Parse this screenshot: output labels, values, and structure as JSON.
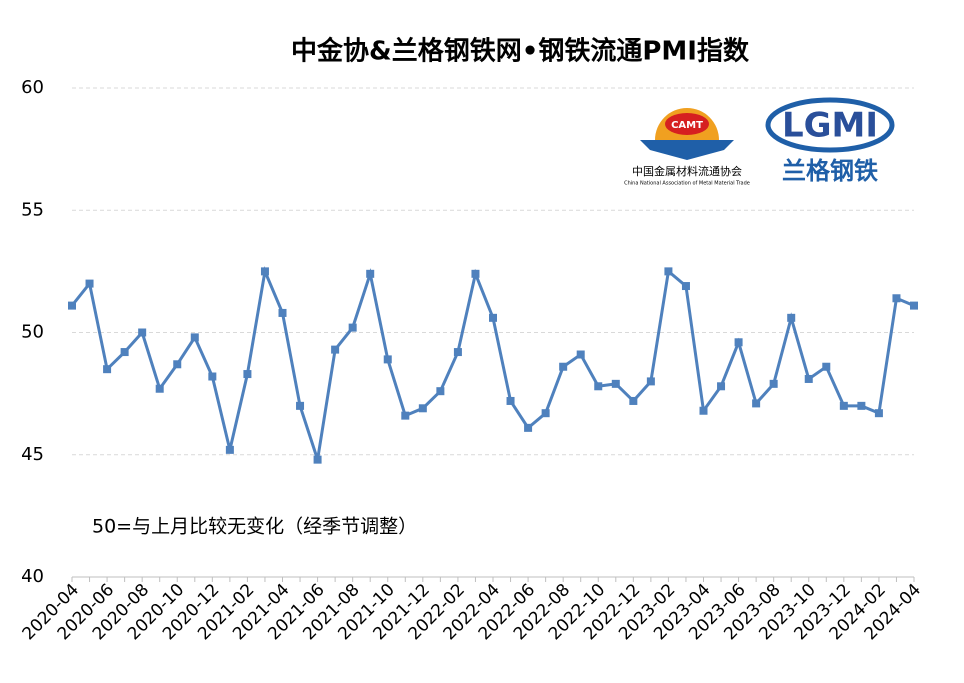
{
  "chart_data": {
    "type": "line",
    "title": "中金协&兰格钢铁网•钢铁流通PMI指数",
    "annotation": "50=与上月比较无变化（经季节调整）",
    "categories": [
      "2020-04",
      null,
      "2020-06",
      null,
      "2020-08",
      null,
      "2020-10",
      null,
      "2020-12",
      null,
      "2021-02",
      null,
      "2021-04",
      null,
      "2021-06",
      null,
      "2021-08",
      null,
      "2021-10",
      null,
      "2021-12",
      null,
      "2022-02",
      null,
      "2022-04",
      null,
      "2022-06",
      null,
      "2022-08",
      null,
      "2022-10",
      null,
      "2022-12",
      null,
      "2023-02",
      null,
      "2023-04",
      null,
      "2023-06",
      null,
      "2023-08",
      null,
      "2023-10",
      null,
      "2023-12",
      null,
      "2024-02",
      null,
      "2024-04"
    ],
    "values": [
      51.1,
      52.0,
      48.5,
      49.2,
      50.0,
      47.7,
      48.7,
      49.8,
      48.2,
      45.2,
      48.3,
      52.5,
      50.8,
      47.0,
      44.8,
      49.3,
      50.2,
      52.4,
      48.9,
      46.6,
      46.9,
      47.6,
      49.2,
      52.4,
      50.6,
      47.2,
      46.1,
      46.7,
      48.6,
      49.1,
      47.8,
      47.9,
      47.2,
      48.0,
      52.5,
      51.9,
      46.8,
      47.8,
      49.6,
      47.1,
      47.9,
      50.6,
      48.1,
      48.6,
      47.0,
      47.0,
      46.7,
      51.4,
      51.1
    ],
    "color": "#4f81bd",
    "ylim": [
      40,
      60
    ],
    "yticks": [
      40,
      45,
      50,
      55,
      60
    ],
    "grid": true
  },
  "logos": {
    "camt": "CAMT",
    "camt_name": "中国金属材料流通协会",
    "camt_english": "China National Association of Metal Material Trade",
    "lgmi": "LGMI",
    "lgmi_name": "兰格钢铁"
  }
}
